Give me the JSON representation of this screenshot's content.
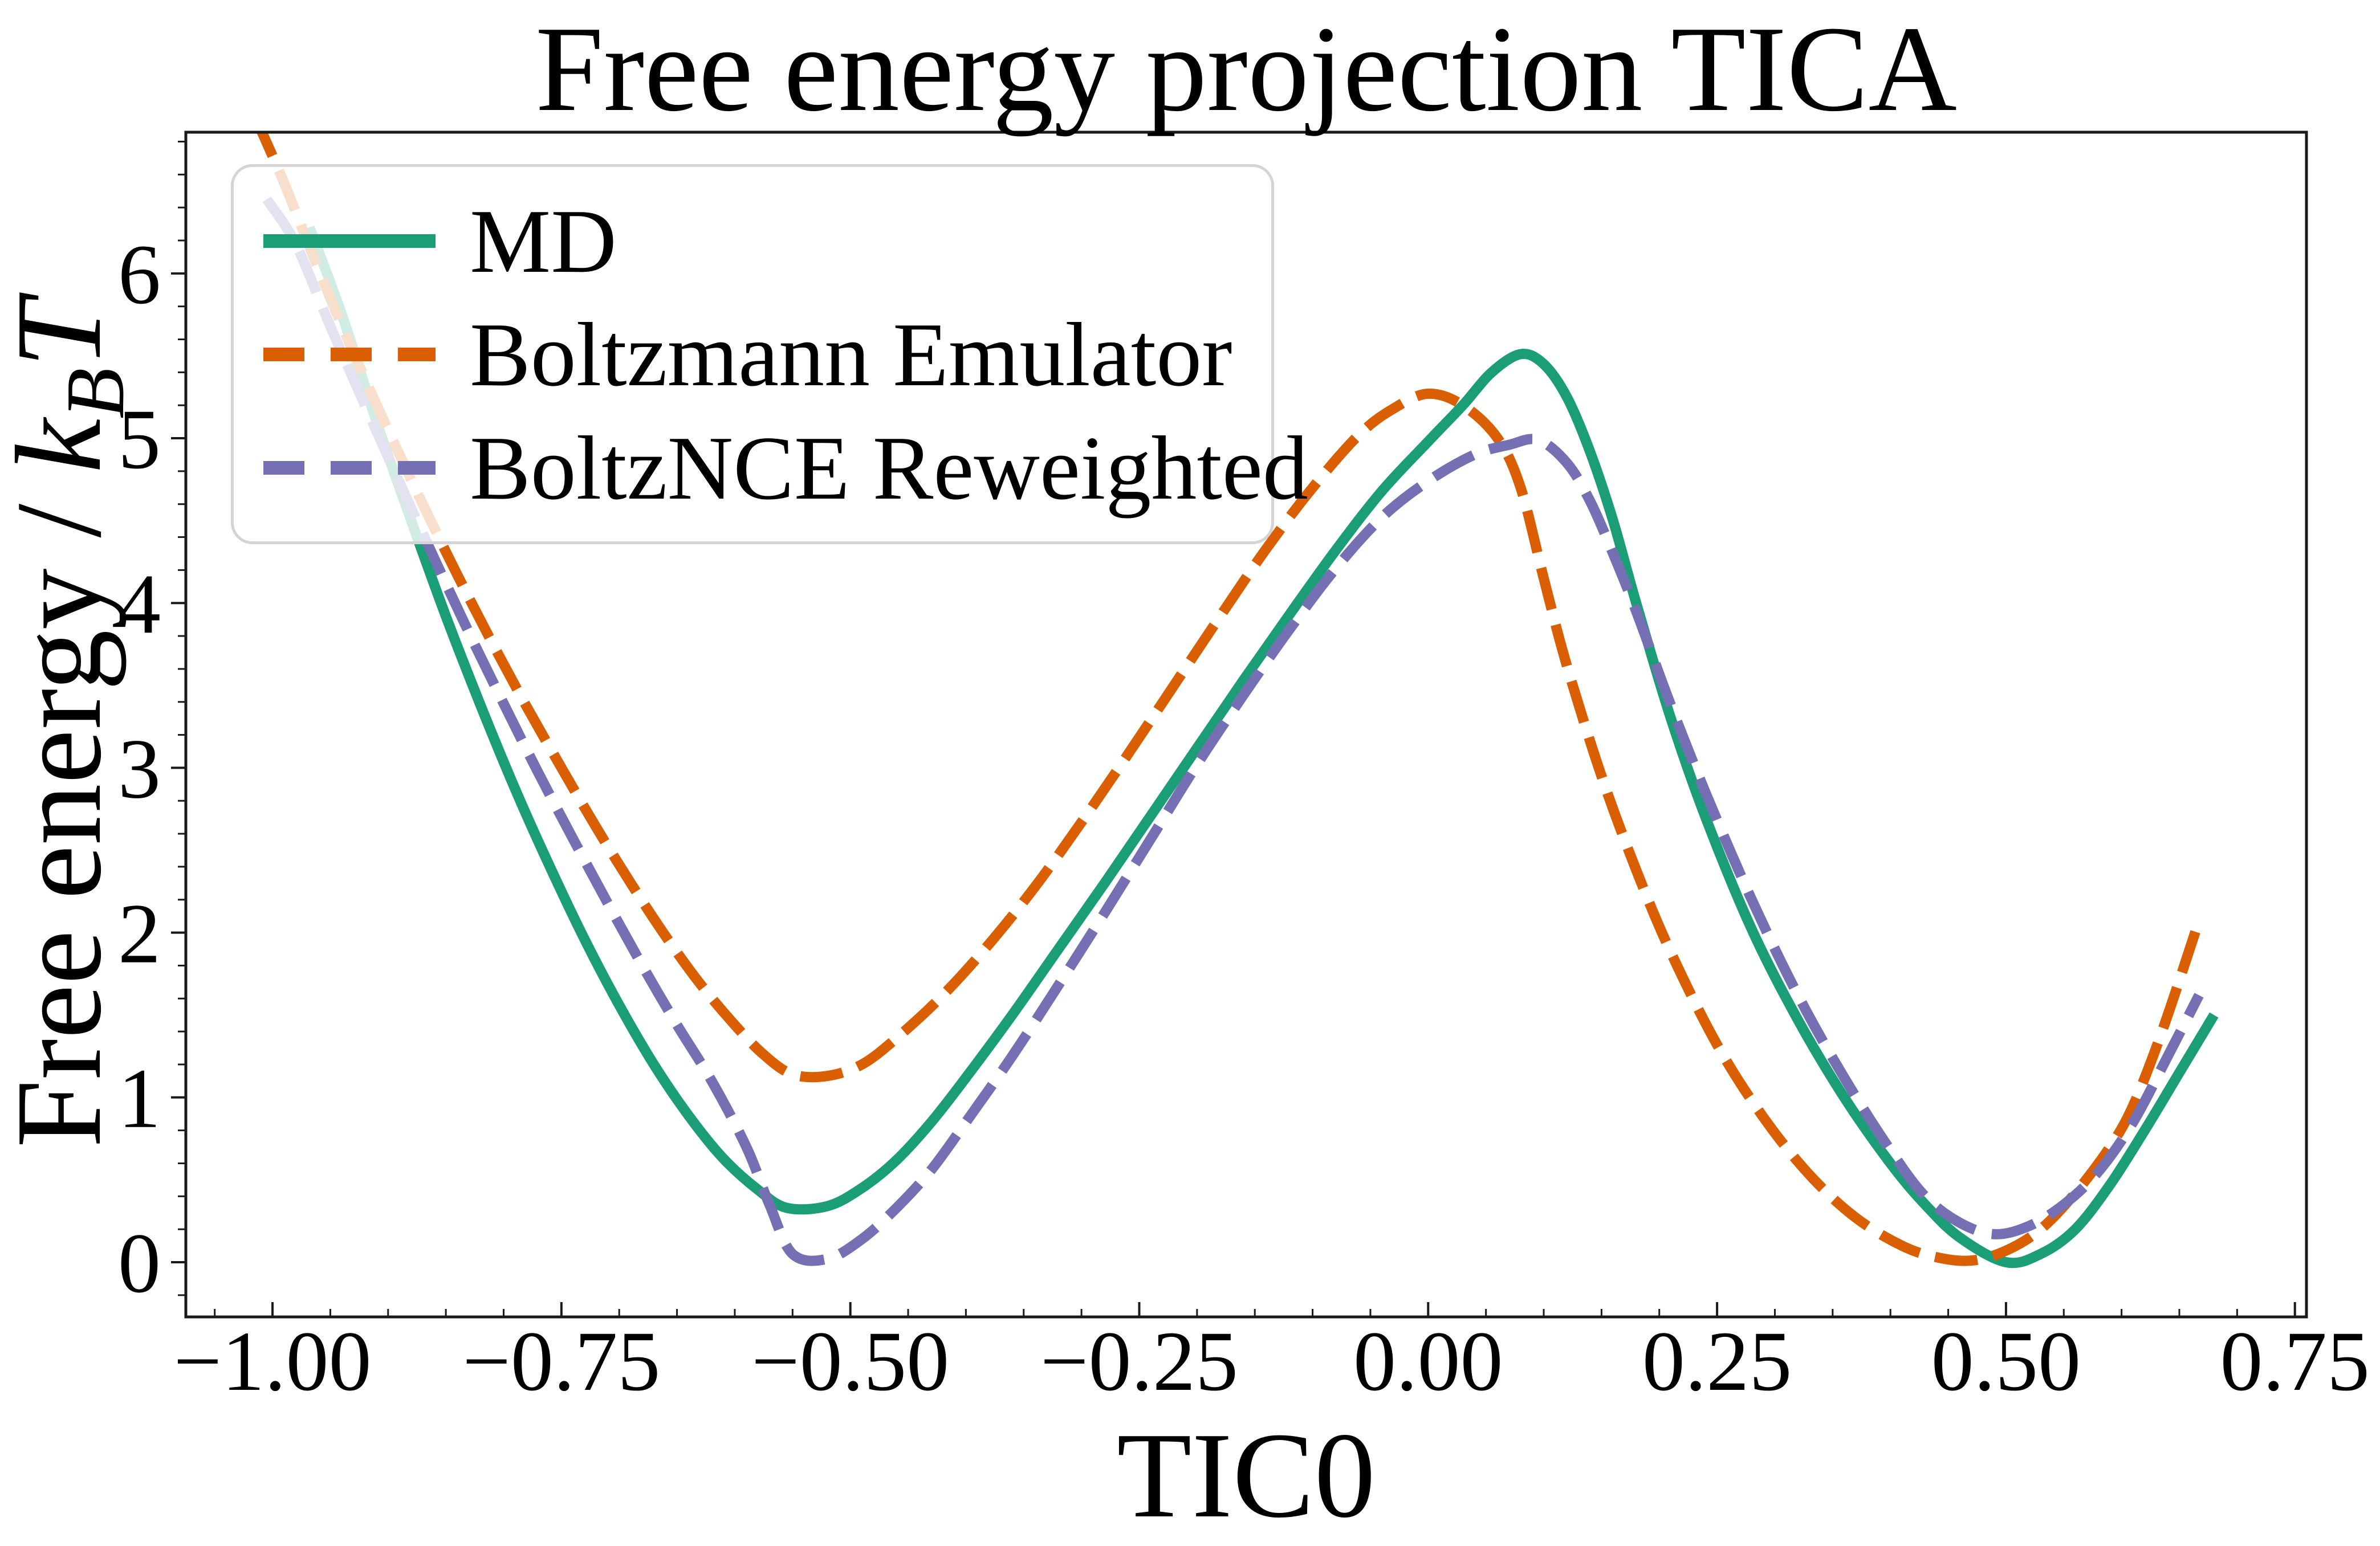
{
  "title": "Free energy projection TICA",
  "xlabel": "TIC0",
  "ylabel": {
    "prefix": "Free energy / ",
    "k": "k",
    "b": "B",
    "t": "T",
    "plain": "Free energy / k_BT"
  },
  "colors": {
    "md": "#1b9e77",
    "boltzmann_emulator": "#d95f02",
    "boltznce_reweighted": "#7570b3",
    "spine": "#1a1a1a",
    "legend_border": "#d4d4d4",
    "background": "#ffffff"
  },
  "legend": {
    "position": "upper left",
    "items": [
      {
        "label": "MD",
        "series": "md",
        "style": "solid"
      },
      {
        "label": "Boltzmann Emulator",
        "series": "boltzmann_emulator",
        "style": "dashed"
      },
      {
        "label": "BoltzNCE Reweighted",
        "series": "boltznce_reweighted",
        "style": "dashed"
      }
    ]
  },
  "chart_data": {
    "type": "line",
    "title": "Free energy projection TICA",
    "xlabel": "TIC0",
    "ylabel": "Free energy / k_BT",
    "xlim": [
      -1.075,
      0.76
    ],
    "ylim": [
      -0.332,
      6.857
    ],
    "grid": false,
    "legend_position": "upper left",
    "x_major_ticks": [
      -1.0,
      -0.75,
      -0.5,
      -0.25,
      0.0,
      0.25,
      0.5,
      0.75
    ],
    "x_tick_labels": [
      "−1.00",
      "−0.75",
      "−0.50",
      "−0.25",
      "0.00",
      "0.25",
      "0.50",
      "0.75"
    ],
    "y_major_ticks": [
      0,
      1,
      2,
      3,
      4,
      5,
      6
    ],
    "y_tick_labels": [
      "0",
      "1",
      "2",
      "3",
      "4",
      "5",
      "6"
    ],
    "x_minor_step": 0.05,
    "y_minor_step": 0.2,
    "series": [
      {
        "id": "md",
        "name": "MD",
        "color": "#1b9e77",
        "line_style": "solid",
        "dash": "",
        "x": [
          -0.968,
          -0.94,
          -0.91,
          -0.88,
          -0.85,
          -0.82,
          -0.79,
          -0.76,
          -0.73,
          -0.7,
          -0.67,
          -0.64,
          -0.61,
          -0.58,
          -0.555,
          -0.52,
          -0.49,
          -0.46,
          -0.43,
          -0.4,
          -0.36,
          -0.32,
          -0.28,
          -0.24,
          -0.2,
          -0.16,
          -0.12,
          -0.08,
          -0.04,
          0.0,
          0.03,
          0.055,
          0.08,
          0.1,
          0.12,
          0.14,
          0.16,
          0.18,
          0.21,
          0.24,
          0.28,
          0.32,
          0.36,
          0.4,
          0.43,
          0.46,
          0.5,
          0.53,
          0.56,
          0.59,
          0.62,
          0.65,
          0.68
        ],
        "y": [
          6.28,
          5.75,
          5.1,
          4.5,
          3.92,
          3.38,
          2.87,
          2.4,
          1.96,
          1.56,
          1.2,
          0.89,
          0.63,
          0.44,
          0.33,
          0.34,
          0.45,
          0.62,
          0.85,
          1.12,
          1.5,
          1.9,
          2.3,
          2.71,
          3.12,
          3.53,
          3.93,
          4.32,
          4.68,
          4.98,
          5.2,
          5.4,
          5.51,
          5.45,
          5.25,
          4.92,
          4.5,
          4.0,
          3.3,
          2.7,
          2.02,
          1.47,
          1.0,
          0.6,
          0.35,
          0.15,
          0.0,
          0.05,
          0.2,
          0.47,
          0.8,
          1.15,
          1.5
        ]
      },
      {
        "id": "boltzmann_emulator",
        "name": "Boltzmann Emulator",
        "color": "#d95f02",
        "line_style": "dashed",
        "dash": "75 28",
        "x": [
          -1.015,
          -0.99,
          -0.96,
          -0.93,
          -0.9,
          -0.87,
          -0.84,
          -0.81,
          -0.78,
          -0.75,
          -0.72,
          -0.69,
          -0.66,
          -0.63,
          -0.6,
          -0.575,
          -0.55,
          -0.52,
          -0.49,
          -0.46,
          -0.42,
          -0.38,
          -0.34,
          -0.3,
          -0.26,
          -0.22,
          -0.18,
          -0.14,
          -0.1,
          -0.06,
          -0.03,
          0.0,
          0.03,
          0.06,
          0.08,
          0.1,
          0.12,
          0.15,
          0.18,
          0.21,
          0.25,
          0.29,
          0.33,
          0.37,
          0.41,
          0.44,
          0.47,
          0.5,
          0.53,
          0.56,
          0.59,
          0.61,
          0.635,
          0.666
        ],
        "y": [
          6.95,
          6.55,
          6.02,
          5.52,
          5.05,
          4.6,
          4.17,
          3.76,
          3.37,
          3.0,
          2.64,
          2.3,
          1.98,
          1.69,
          1.44,
          1.26,
          1.14,
          1.13,
          1.2,
          1.36,
          1.62,
          1.93,
          2.28,
          2.67,
          3.08,
          3.5,
          3.92,
          4.33,
          4.7,
          5.02,
          5.18,
          5.27,
          5.2,
          5.0,
          4.7,
          4.15,
          3.62,
          2.95,
          2.38,
          1.88,
          1.32,
          0.88,
          0.53,
          0.27,
          0.1,
          0.03,
          0.01,
          0.07,
          0.2,
          0.42,
          0.7,
          0.95,
          1.4,
          2.05
        ]
      },
      {
        "id": "boltznce_reweighted",
        "name": "BoltzNCE Reweighted",
        "color": "#7570b3",
        "line_style": "dashed",
        "dash": "78 30",
        "x": [
          -1.005,
          -0.98,
          -0.95,
          -0.92,
          -0.89,
          -0.86,
          -0.83,
          -0.8,
          -0.77,
          -0.74,
          -0.71,
          -0.68,
          -0.65,
          -0.62,
          -0.59,
          -0.57,
          -0.55,
          -0.52,
          -0.49,
          -0.46,
          -0.43,
          -0.4,
          -0.36,
          -0.32,
          -0.28,
          -0.24,
          -0.2,
          -0.16,
          -0.12,
          -0.08,
          -0.04,
          0.0,
          0.04,
          0.07,
          0.095,
          0.12,
          0.14,
          0.16,
          0.18,
          0.21,
          0.24,
          0.28,
          0.32,
          0.36,
          0.4,
          0.43,
          0.46,
          0.49,
          0.52,
          0.55,
          0.58,
          0.61,
          0.64,
          0.667
        ],
        "y": [
          6.45,
          6.18,
          5.68,
          5.2,
          4.73,
          4.27,
          3.82,
          3.39,
          2.97,
          2.57,
          2.18,
          1.8,
          1.44,
          1.1,
          0.7,
          0.35,
          0.05,
          0.02,
          0.14,
          0.33,
          0.56,
          0.85,
          1.25,
          1.68,
          2.12,
          2.57,
          3.02,
          3.44,
          3.84,
          4.21,
          4.52,
          4.74,
          4.9,
          4.96,
          4.99,
          4.85,
          4.62,
          4.3,
          3.95,
          3.38,
          2.85,
          2.2,
          1.62,
          1.12,
          0.68,
          0.4,
          0.24,
          0.17,
          0.22,
          0.35,
          0.55,
          0.85,
          1.25,
          1.62
        ]
      }
    ]
  }
}
